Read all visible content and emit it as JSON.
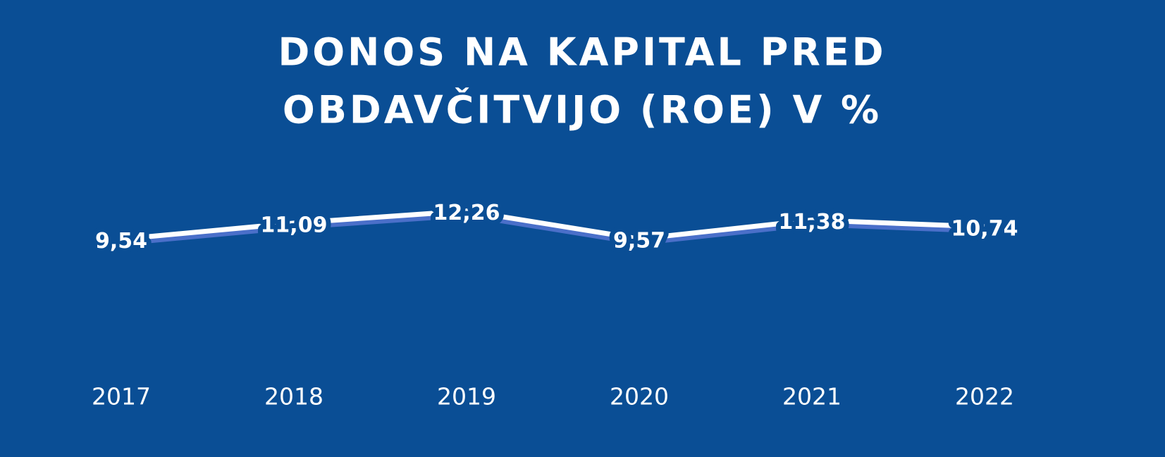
{
  "chart_data": {
    "type": "line",
    "title": [
      "DONOS NA KAPITAL PRED",
      "OBDAVČITVIJO (ROE) V %"
    ],
    "categories": [
      "2017",
      "2018",
      "2019",
      "2020",
      "2021",
      "2022"
    ],
    "values": [
      9.54,
      11.09,
      12.26,
      9.57,
      11.38,
      10.74
    ],
    "value_labels": [
      "9,54",
      "11,09",
      "12,26",
      "9,57",
      "11,38",
      "10,74"
    ],
    "color": "#ffffff",
    "ylim": [
      0,
      14
    ]
  }
}
